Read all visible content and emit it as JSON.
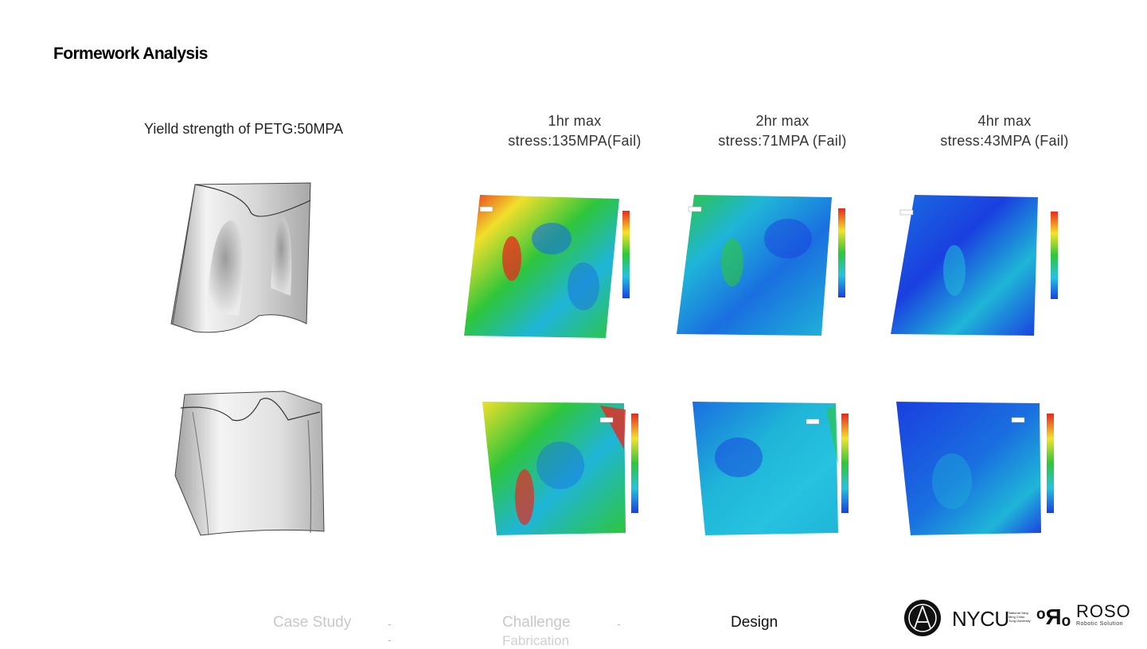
{
  "title": "Formework Analysis",
  "yield_label": "Yielld strength of PETG:50MPA",
  "columns": [
    {
      "line1": "1hr max",
      "line2": "stress:135MPA(Fail)"
    },
    {
      "line1": "2hr max",
      "line2": "stress:71MPA (Fail)"
    },
    {
      "line1": "4hr max",
      "line2": "stress:43MPA (Fail)"
    }
  ],
  "footer_nav": {
    "items": [
      "Case Study",
      "Challenge",
      "Design"
    ],
    "sub": "Fabrication",
    "separator": "-"
  },
  "logos": {
    "nycu": "NYCU",
    "nycu_sub": "National Yang Ming Chiao Tung University",
    "roso_mark": "ᵒЯₒ",
    "roso": "ROSO",
    "roso_sub": "Robotic Solution"
  },
  "colors": {
    "stress_high": "#e8281e",
    "stress_mid": "#2ec63a",
    "stress_low": "#1a3fe0"
  },
  "icons": [
    "nycu-emblem-icon",
    "color-scale-icon"
  ]
}
